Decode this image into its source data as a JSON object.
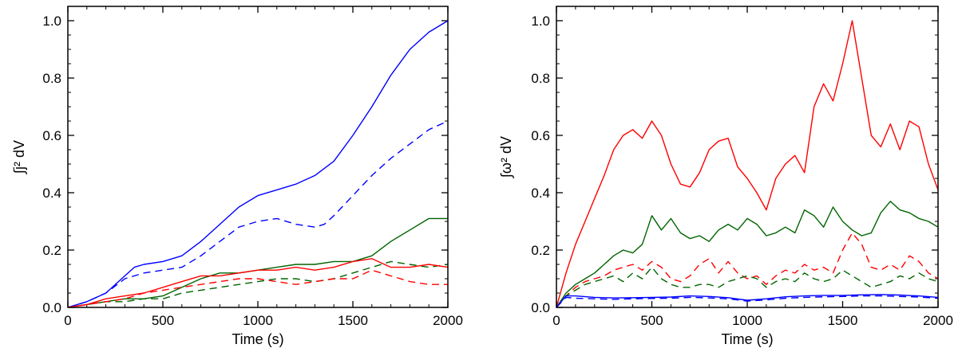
{
  "chart_data": [
    {
      "type": "line",
      "title": "",
      "xlabel": "Time (s)",
      "ylabel": "∫j² dV",
      "xlim": [
        0,
        2000
      ],
      "ylim": [
        0,
        1.05
      ],
      "xticks": [
        "0",
        "500",
        "1000",
        "1500",
        "2000"
      ],
      "yticks": [
        "0.0",
        "0.2",
        "0.4",
        "0.6",
        "0.8",
        "1.0"
      ],
      "xtick_values": [
        0,
        500,
        1000,
        1500,
        2000
      ],
      "ytick_values": [
        0.0,
        0.2,
        0.4,
        0.6,
        0.8,
        1.0
      ],
      "series": [
        {
          "name": "blue solid",
          "color": "#0000ff",
          "dash": "solid",
          "x": [
            0,
            100,
            200,
            300,
            350,
            400,
            500,
            600,
            700,
            800,
            900,
            1000,
            1100,
            1200,
            1300,
            1400,
            1500,
            1600,
            1700,
            1800,
            1900,
            2000
          ],
          "y": [
            0,
            0.02,
            0.05,
            0.11,
            0.14,
            0.15,
            0.16,
            0.18,
            0.23,
            0.29,
            0.35,
            0.39,
            0.41,
            0.43,
            0.46,
            0.51,
            0.6,
            0.7,
            0.81,
            0.9,
            0.96,
            1.0
          ]
        },
        {
          "name": "blue dashed",
          "color": "#0000ff",
          "dash": "dashed",
          "x": [
            0,
            100,
            200,
            300,
            400,
            500,
            600,
            700,
            800,
            900,
            1000,
            1100,
            1200,
            1300,
            1350,
            1400,
            1500,
            1600,
            1700,
            1800,
            1900,
            2000
          ],
          "y": [
            0,
            0.02,
            0.05,
            0.1,
            0.12,
            0.13,
            0.14,
            0.18,
            0.23,
            0.28,
            0.3,
            0.31,
            0.29,
            0.28,
            0.29,
            0.32,
            0.39,
            0.46,
            0.52,
            0.57,
            0.62,
            0.65
          ]
        },
        {
          "name": "green solid",
          "color": "#006400",
          "dash": "solid",
          "x": [
            0,
            100,
            200,
            300,
            400,
            500,
            600,
            700,
            800,
            900,
            1000,
            1100,
            1200,
            1300,
            1400,
            1500,
            1600,
            1700,
            1800,
            1900,
            2000
          ],
          "y": [
            0,
            0.01,
            0.02,
            0.03,
            0.03,
            0.04,
            0.07,
            0.1,
            0.12,
            0.12,
            0.13,
            0.14,
            0.15,
            0.15,
            0.16,
            0.16,
            0.18,
            0.23,
            0.27,
            0.31,
            0.31
          ]
        },
        {
          "name": "green dashed",
          "color": "#006400",
          "dash": "dashed",
          "x": [
            0,
            100,
            200,
            300,
            400,
            500,
            600,
            700,
            800,
            900,
            1000,
            1100,
            1200,
            1300,
            1400,
            1500,
            1600,
            1700,
            1800,
            1900,
            2000
          ],
          "y": [
            0,
            0.01,
            0.02,
            0.02,
            0.03,
            0.03,
            0.05,
            0.06,
            0.07,
            0.08,
            0.09,
            0.1,
            0.1,
            0.09,
            0.1,
            0.12,
            0.14,
            0.16,
            0.15,
            0.14,
            0.15
          ]
        },
        {
          "name": "red solid",
          "color": "#ff0000",
          "dash": "solid",
          "x": [
            0,
            100,
            200,
            300,
            400,
            500,
            600,
            700,
            800,
            900,
            1000,
            1100,
            1200,
            1300,
            1400,
            1500,
            1600,
            1700,
            1800,
            1900,
            2000
          ],
          "y": [
            0,
            0.01,
            0.03,
            0.04,
            0.05,
            0.07,
            0.09,
            0.11,
            0.11,
            0.12,
            0.13,
            0.13,
            0.14,
            0.13,
            0.14,
            0.16,
            0.17,
            0.14,
            0.14,
            0.15,
            0.14
          ]
        },
        {
          "name": "red dashed",
          "color": "#ff0000",
          "dash": "dashed",
          "x": [
            0,
            100,
            200,
            300,
            400,
            500,
            600,
            700,
            800,
            900,
            1000,
            1100,
            1200,
            1300,
            1400,
            1500,
            1600,
            1700,
            1800,
            1900,
            2000
          ],
          "y": [
            0,
            0.01,
            0.02,
            0.03,
            0.05,
            0.06,
            0.07,
            0.08,
            0.09,
            0.1,
            0.1,
            0.09,
            0.08,
            0.09,
            0.1,
            0.1,
            0.13,
            0.11,
            0.09,
            0.08,
            0.08
          ]
        }
      ]
    },
    {
      "type": "line",
      "title": "",
      "xlabel": "Time (s)",
      "ylabel": "∫ω² dV",
      "xlim": [
        0,
        2000
      ],
      "ylim": [
        0,
        1.05
      ],
      "xticks": [
        "0",
        "500",
        "1000",
        "1500",
        "2000"
      ],
      "yticks": [
        "0.0",
        "0.2",
        "0.4",
        "0.6",
        "0.8",
        "1.0"
      ],
      "xtick_values": [
        0,
        500,
        1000,
        1500,
        2000
      ],
      "ytick_values": [
        0.0,
        0.2,
        0.4,
        0.6,
        0.8,
        1.0
      ],
      "series": [
        {
          "name": "red solid",
          "color": "#ff0000",
          "dash": "solid",
          "x": [
            0,
            50,
            100,
            150,
            200,
            250,
            300,
            350,
            400,
            450,
            500,
            550,
            600,
            650,
            700,
            750,
            800,
            850,
            900,
            950,
            1000,
            1050,
            1100,
            1150,
            1200,
            1250,
            1300,
            1350,
            1400,
            1450,
            1500,
            1550,
            1600,
            1650,
            1700,
            1750,
            1800,
            1850,
            1900,
            1950,
            2000
          ],
          "y": [
            0,
            0.12,
            0.22,
            0.3,
            0.38,
            0.46,
            0.55,
            0.6,
            0.62,
            0.59,
            0.65,
            0.6,
            0.5,
            0.43,
            0.42,
            0.47,
            0.55,
            0.58,
            0.59,
            0.49,
            0.45,
            0.4,
            0.34,
            0.45,
            0.5,
            0.53,
            0.47,
            0.7,
            0.78,
            0.72,
            0.85,
            1.0,
            0.8,
            0.6,
            0.56,
            0.64,
            0.55,
            0.65,
            0.63,
            0.5,
            0.41
          ]
        },
        {
          "name": "green solid",
          "color": "#006400",
          "dash": "solid",
          "x": [
            0,
            50,
            100,
            150,
            200,
            250,
            300,
            350,
            400,
            450,
            500,
            550,
            600,
            650,
            700,
            750,
            800,
            850,
            900,
            950,
            1000,
            1050,
            1100,
            1150,
            1200,
            1250,
            1300,
            1350,
            1400,
            1450,
            1500,
            1550,
            1600,
            1650,
            1700,
            1750,
            1800,
            1850,
            1900,
            1950,
            2000
          ],
          "y": [
            0,
            0.05,
            0.08,
            0.1,
            0.12,
            0.15,
            0.18,
            0.2,
            0.19,
            0.22,
            0.32,
            0.27,
            0.31,
            0.26,
            0.24,
            0.25,
            0.23,
            0.27,
            0.29,
            0.27,
            0.31,
            0.29,
            0.25,
            0.26,
            0.28,
            0.26,
            0.34,
            0.32,
            0.28,
            0.35,
            0.3,
            0.27,
            0.25,
            0.26,
            0.33,
            0.37,
            0.34,
            0.33,
            0.31,
            0.3,
            0.28
          ]
        },
        {
          "name": "red dashed",
          "color": "#ff0000",
          "dash": "dashed",
          "x": [
            0,
            50,
            100,
            150,
            200,
            250,
            300,
            350,
            400,
            450,
            500,
            550,
            600,
            650,
            700,
            750,
            800,
            850,
            900,
            950,
            1000,
            1050,
            1100,
            1150,
            1200,
            1250,
            1300,
            1350,
            1400,
            1450,
            1500,
            1550,
            1600,
            1650,
            1700,
            1750,
            1800,
            1850,
            1900,
            1950,
            2000
          ],
          "y": [
            0,
            0.04,
            0.07,
            0.09,
            0.1,
            0.11,
            0.13,
            0.14,
            0.15,
            0.13,
            0.16,
            0.14,
            0.1,
            0.09,
            0.11,
            0.15,
            0.17,
            0.12,
            0.16,
            0.12,
            0.1,
            0.11,
            0.08,
            0.11,
            0.13,
            0.12,
            0.15,
            0.13,
            0.14,
            0.12,
            0.2,
            0.26,
            0.22,
            0.14,
            0.13,
            0.15,
            0.13,
            0.18,
            0.16,
            0.12,
            0.1
          ]
        },
        {
          "name": "green dashed",
          "color": "#006400",
          "dash": "dashed",
          "x": [
            0,
            50,
            100,
            150,
            200,
            250,
            300,
            350,
            400,
            450,
            500,
            550,
            600,
            650,
            700,
            750,
            800,
            850,
            900,
            950,
            1000,
            1050,
            1100,
            1150,
            1200,
            1250,
            1300,
            1350,
            1400,
            1450,
            1500,
            1550,
            1600,
            1650,
            1700,
            1750,
            1800,
            1850,
            1900,
            1950,
            2000
          ],
          "y": [
            0,
            0.04,
            0.06,
            0.08,
            0.09,
            0.1,
            0.11,
            0.09,
            0.12,
            0.1,
            0.14,
            0.1,
            0.08,
            0.07,
            0.07,
            0.08,
            0.08,
            0.07,
            0.09,
            0.1,
            0.11,
            0.1,
            0.07,
            0.09,
            0.1,
            0.09,
            0.12,
            0.1,
            0.09,
            0.1,
            0.13,
            0.11,
            0.09,
            0.07,
            0.08,
            0.09,
            0.11,
            0.1,
            0.12,
            0.1,
            0.09
          ]
        },
        {
          "name": "blue solid",
          "color": "#0000ff",
          "dash": "solid",
          "x": [
            0,
            50,
            100,
            200,
            300,
            400,
            500,
            600,
            700,
            800,
            900,
            1000,
            1100,
            1200,
            1300,
            1400,
            1500,
            1600,
            1700,
            1800,
            1900,
            2000
          ],
          "y": [
            0,
            0.04,
            0.04,
            0.035,
            0.033,
            0.034,
            0.035,
            0.036,
            0.04,
            0.038,
            0.034,
            0.025,
            0.03,
            0.037,
            0.04,
            0.042,
            0.042,
            0.044,
            0.045,
            0.043,
            0.04,
            0.035
          ]
        },
        {
          "name": "blue dashed",
          "color": "#0000ff",
          "dash": "dashed",
          "x": [
            0,
            50,
            100,
            200,
            300,
            400,
            500,
            600,
            700,
            800,
            900,
            1000,
            1100,
            1200,
            1300,
            1400,
            1500,
            1600,
            1700,
            1800,
            1900,
            2000
          ],
          "y": [
            0,
            0.035,
            0.032,
            0.03,
            0.028,
            0.03,
            0.031,
            0.032,
            0.035,
            0.033,
            0.03,
            0.022,
            0.026,
            0.032,
            0.035,
            0.037,
            0.038,
            0.04,
            0.04,
            0.038,
            0.036,
            0.032
          ]
        }
      ]
    }
  ]
}
